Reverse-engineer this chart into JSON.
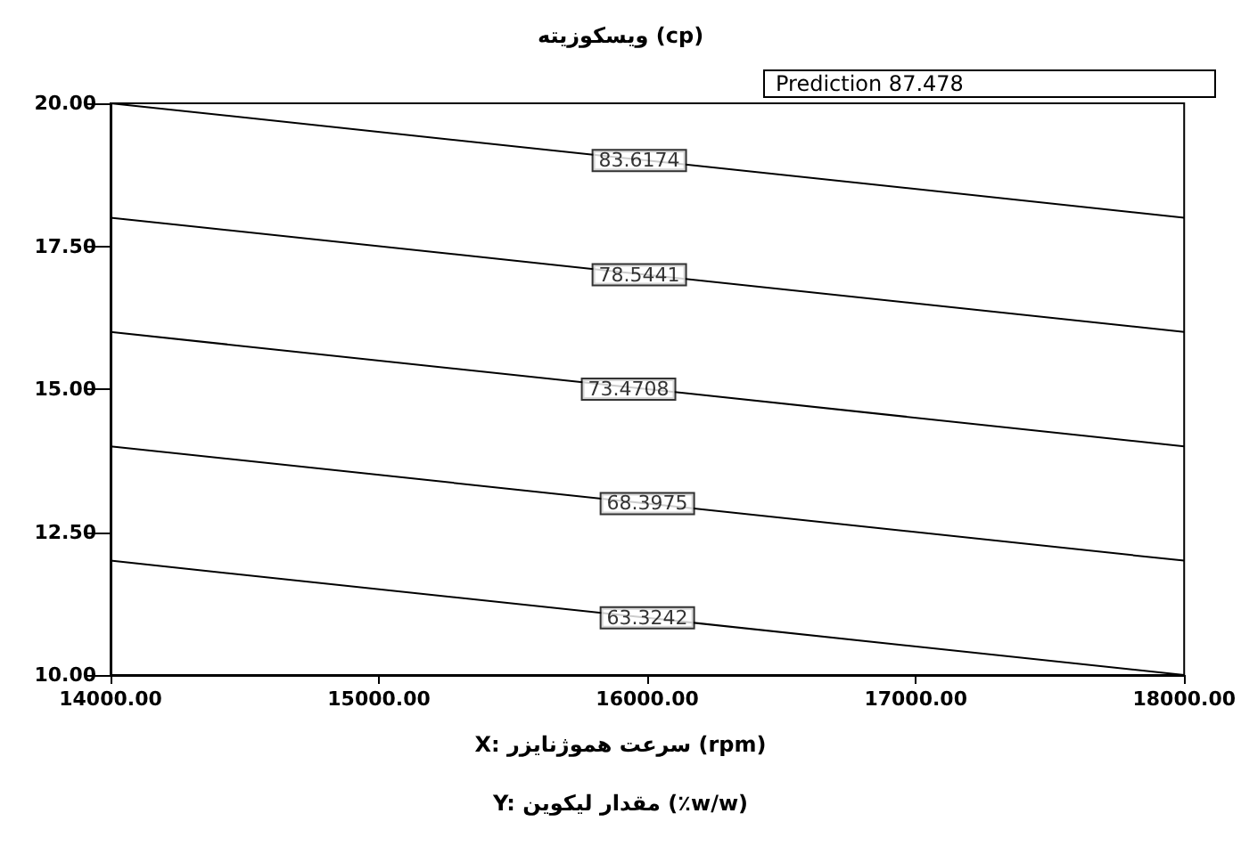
{
  "chart_data": {
    "type": "line",
    "title": "ويسكوزيته (cp)",
    "xlabel": "X: سرعت هموژنایزر (rpm)",
    "xlim": [
      14000,
      18000
    ],
    "xticks": [
      {
        "value": 14000,
        "label": "14000.00"
      },
      {
        "value": 15000,
        "label": "15000.00"
      },
      {
        "value": 16000,
        "label": "16000.00"
      },
      {
        "value": 17000,
        "label": "17000.00"
      },
      {
        "value": 18000,
        "label": "18000.00"
      }
    ],
    "ylim": [
      10,
      20
    ],
    "yticks": [
      {
        "value": 10,
        "label": "10.00"
      },
      {
        "value": 12.5,
        "label": "12.50"
      },
      {
        "value": 15,
        "label": "15.00"
      },
      {
        "value": 17.5,
        "label": "17.50"
      },
      {
        "value": 20,
        "label": "20.00"
      }
    ],
    "grid": false,
    "marker": "none",
    "line_style": "solid",
    "x": [
      14000,
      18000
    ],
    "series": [
      {
        "color": "#000000",
        "values": [
          20,
          18
        ]
      },
      {
        "color": "#000000",
        "values": [
          18,
          16
        ]
      },
      {
        "color": "#000000",
        "values": [
          16,
          14
        ]
      },
      {
        "color": "#000000",
        "values": [
          14,
          12
        ]
      },
      {
        "color": "#000000",
        "values": [
          12,
          10
        ]
      }
    ],
    "annotations": [
      {
        "text": "83.6174",
        "x": 15970,
        "y": 19
      },
      {
        "text": "78.5441",
        "x": 15970,
        "y": 17
      },
      {
        "text": "73.4708",
        "x": 15930,
        "y": 15
      },
      {
        "text": "68.3975",
        "x": 16000,
        "y": 13
      },
      {
        "text": "63.3242",
        "x": 16000,
        "y": 11
      },
      "Prediction 87.478",
      "Y: مقدار لیکوین (٪w/w)"
    ]
  }
}
